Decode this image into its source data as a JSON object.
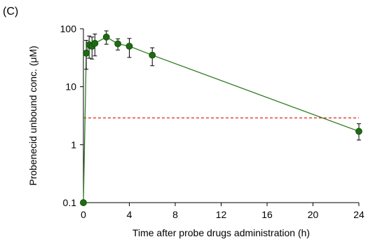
{
  "chart_data": {
    "type": "line",
    "panel_label": "(C)",
    "title": "",
    "xlabel": "Time after probe drugs administration (h)",
    "ylabel": "Probenecid unbound conc. (μM)",
    "xlim": [
      0,
      24
    ],
    "ylim": [
      0.1,
      100
    ],
    "y_scale": "log",
    "x_ticks": [
      0,
      4,
      8,
      12,
      16,
      20,
      24
    ],
    "y_ticks": [
      0.1,
      1,
      10,
      100
    ],
    "x_tick_labels": [
      "0",
      "4",
      "8",
      "12",
      "16",
      "20",
      "24"
    ],
    "y_tick_labels": [
      "0.1",
      "1",
      "10",
      "100"
    ],
    "grid": false,
    "series": [
      {
        "color": "#2e7d1f",
        "marker_color": "#1e6b12",
        "x": [
          0,
          0.25,
          0.5,
          0.75,
          1,
          2,
          3,
          4,
          6,
          24
        ],
        "y": [
          0.1,
          38,
          53,
          50,
          56,
          72,
          55,
          50,
          35,
          1.7
        ],
        "err_low": [
          0,
          18,
          22,
          20,
          22,
          18,
          12,
          18,
          12,
          0.5
        ],
        "err_high": [
          0,
          25,
          22,
          22,
          25,
          20,
          12,
          18,
          12,
          0.6
        ]
      }
    ],
    "reference_line": {
      "y": 2.9,
      "color": "#e02020",
      "style": "dashed"
    }
  }
}
